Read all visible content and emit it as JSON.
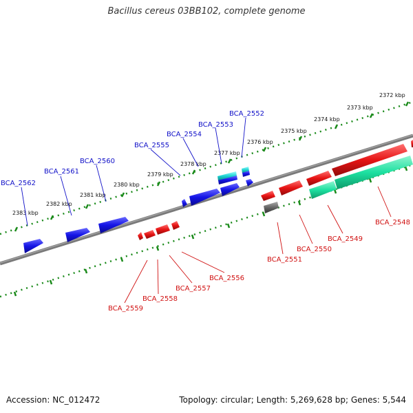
{
  "title": "Bacillus cereus 03BB102, complete genome",
  "accession": "Accession: NC_012472",
  "topology": "Topology: circular; Length: 5,269,628 bp; Genes: 5,544",
  "colors": {
    "forward_gene": "#1414e6",
    "reverse_gene": "#e61414",
    "rna_gene": "#1de0a0",
    "pseudo_gene": "#666666",
    "backbone": "#7a7a7a",
    "scale_dots": "#1a8a1a"
  },
  "scale_labels": [
    "2372 kbp",
    "2373 kbp",
    "2374 kbp",
    "2375 kbp",
    "2376 kbp",
    "2377 kbp",
    "2378 kbp",
    "2379 kbp",
    "2380 kbp",
    "2381 kbp",
    "2382 kbp",
    "2383 kbp"
  ],
  "genes_upper": [
    "BCA_2562",
    "BCA_2561",
    "BCA_2560",
    "BCA_2555",
    "BCA_2554",
    "BCA_2553",
    "BCA_2552"
  ],
  "genes_lower": [
    "BCA_2559",
    "BCA_2558",
    "BCA_2557",
    "BCA_2556",
    "BCA_2551",
    "BCA_2550",
    "BCA_2549",
    "BCA_2548"
  ]
}
